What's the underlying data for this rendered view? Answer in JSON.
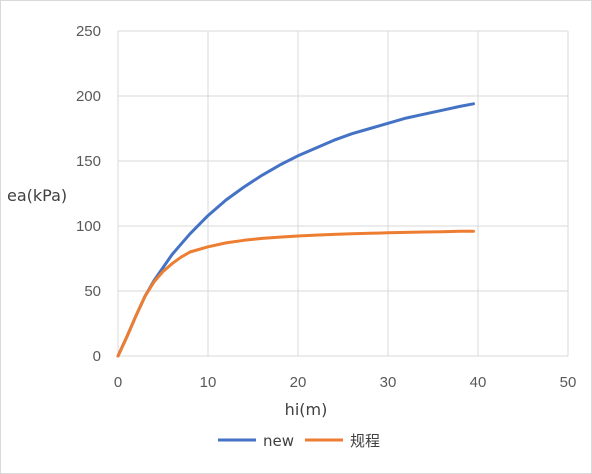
{
  "chart_data": {
    "type": "line",
    "title": "",
    "xlabel": "hi(m)",
    "ylabel": "ea(kPa)",
    "xlim": [
      0,
      50
    ],
    "ylim": [
      0,
      250
    ],
    "x_ticks": [
      "0",
      "10",
      "20",
      "30",
      "40",
      "50"
    ],
    "y_ticks": [
      "0",
      "50",
      "100",
      "150",
      "200",
      "250"
    ],
    "grid": true,
    "legend": "bottom",
    "series": [
      {
        "name": "new",
        "color": "#4472C4",
        "x": [
          0,
          1,
          2,
          3,
          4,
          5,
          6,
          7,
          8,
          10,
          12,
          14,
          16,
          18,
          20,
          22,
          24,
          26,
          28,
          30,
          32,
          34,
          36,
          38,
          39.5
        ],
        "y": [
          0,
          15,
          31,
          46,
          58,
          68,
          78,
          86,
          94,
          108,
          120,
          130,
          139,
          147,
          154,
          160,
          166,
          171,
          175,
          179,
          183,
          186,
          189,
          192,
          194
        ]
      },
      {
        "name": "规程",
        "color": "#ED7D31",
        "x": [
          0,
          1,
          2,
          3,
          4,
          5,
          6,
          7,
          8,
          10,
          12,
          14,
          16,
          18,
          20,
          22,
          24,
          26,
          28,
          30,
          32,
          34,
          36,
          38,
          39.5
        ],
        "y": [
          0,
          15,
          31,
          46,
          57,
          65,
          71,
          76,
          80,
          84,
          87,
          89,
          90.5,
          91.5,
          92.3,
          93,
          93.5,
          94,
          94.4,
          94.8,
          95.1,
          95.4,
          95.6,
          95.9,
          96
        ]
      }
    ]
  }
}
